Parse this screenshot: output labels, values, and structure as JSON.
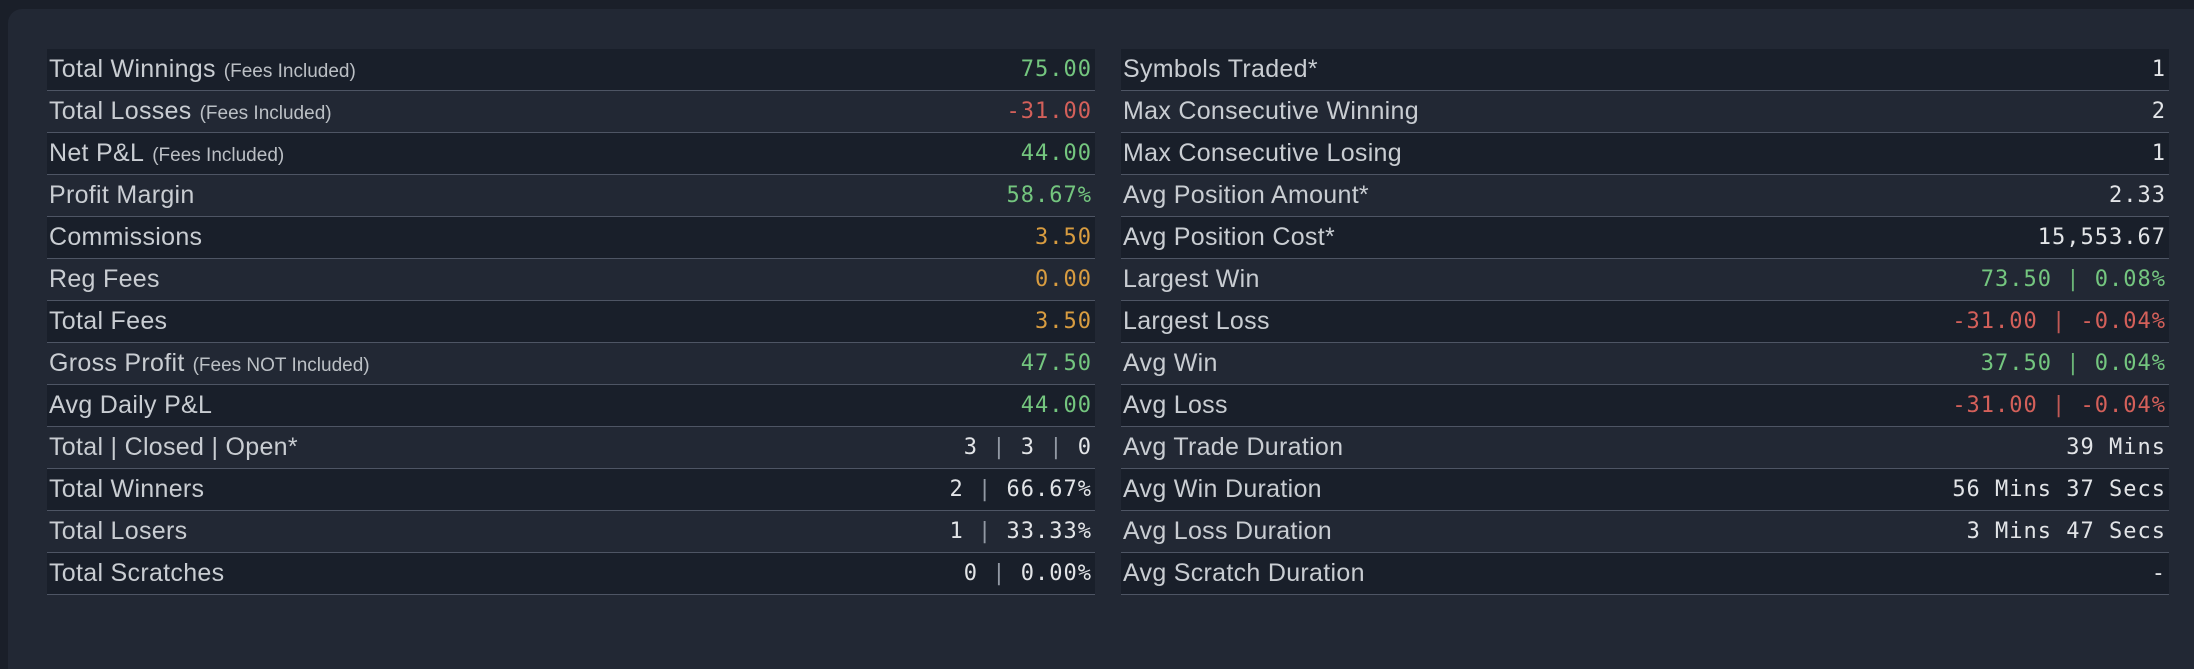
{
  "theme": {
    "page-bg": "#1a1f29",
    "card-bg": "#222834",
    "row-alt-bg": "#191f2a",
    "separator": "#4e5564",
    "label": "#c9cdd2",
    "white": "#e2e4e7",
    "green": "#74c67f",
    "red": "#d4605a",
    "orange": "#d89c40",
    "pipe-dim": "#9299a4"
  },
  "columns": {
    "left": {
      "rows": [
        {
          "label": "Total Winnings",
          "note": "(Fees Included)",
          "value": "75.00",
          "color": "green"
        },
        {
          "label": "Total Losses",
          "note": "(Fees Included)",
          "value": "-31.00",
          "color": "red"
        },
        {
          "label": "Net P&L",
          "note": "(Fees Included)",
          "value": "44.00",
          "color": "green"
        },
        {
          "label": "Profit Margin",
          "note": "",
          "value": "58.67%",
          "color": "green"
        },
        {
          "label": "Commissions",
          "note": "",
          "value": "3.50",
          "color": "orange"
        },
        {
          "label": "Reg Fees",
          "note": "",
          "value": "0.00",
          "color": "orange"
        },
        {
          "label": "Total Fees",
          "note": "",
          "value": "3.50",
          "color": "orange"
        },
        {
          "label": "Gross Profit",
          "note": "(Fees NOT Included)",
          "value": "47.50",
          "color": "green"
        },
        {
          "label": "Avg Daily P&L",
          "note": "",
          "value": "44.00",
          "color": "green"
        },
        {
          "label": "Total | Closed | Open*",
          "note": "",
          "value": "3 | 3 | 0",
          "color": "white"
        },
        {
          "label": "Total Winners",
          "note": "",
          "value": "2 | 66.67%",
          "color": "white"
        },
        {
          "label": "Total Losers",
          "note": "",
          "value": "1 | 33.33%",
          "color": "white"
        },
        {
          "label": "Total Scratches",
          "note": "",
          "value": "0 | 0.00%",
          "color": "white"
        }
      ]
    },
    "right": {
      "rows": [
        {
          "label": "Symbols Traded*",
          "note": "",
          "value": "1",
          "color": "white"
        },
        {
          "label": "Max Consecutive Winning",
          "note": "",
          "value": "2",
          "color": "white"
        },
        {
          "label": "Max Consecutive Losing",
          "note": "",
          "value": "1",
          "color": "white"
        },
        {
          "label": "Avg Position Amount*",
          "note": "",
          "value": "2.33",
          "color": "white"
        },
        {
          "label": "Avg Position Cost*",
          "note": "",
          "value": "15,553.67",
          "color": "white"
        },
        {
          "label": "Largest Win",
          "note": "",
          "value": "73.50 | 0.08%",
          "color": "green"
        },
        {
          "label": "Largest Loss",
          "note": "",
          "value": "-31.00 | -0.04%",
          "color": "red"
        },
        {
          "label": "Avg Win",
          "note": "",
          "value": "37.50 | 0.04%",
          "color": "green"
        },
        {
          "label": "Avg Loss",
          "note": "",
          "value": "-31.00 | -0.04%",
          "color": "red"
        },
        {
          "label": "Avg Trade Duration",
          "note": "",
          "value": "39 Mins",
          "color": "white"
        },
        {
          "label": "Avg Win Duration",
          "note": "",
          "value": "56 Mins 37 Secs",
          "color": "white"
        },
        {
          "label": "Avg Loss Duration",
          "note": "",
          "value": "3 Mins 47 Secs",
          "color": "white"
        },
        {
          "label": "Avg Scratch Duration",
          "note": "",
          "value": "-",
          "color": "white"
        }
      ]
    }
  }
}
